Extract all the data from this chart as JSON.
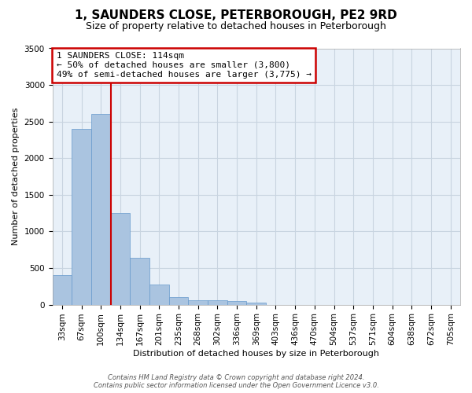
{
  "title": "1, SAUNDERS CLOSE, PETERBOROUGH, PE2 9RD",
  "subtitle": "Size of property relative to detached houses in Peterborough",
  "xlabel": "Distribution of detached houses by size in Peterborough",
  "ylabel": "Number of detached properties",
  "bar_labels": [
    "33sqm",
    "67sqm",
    "100sqm",
    "134sqm",
    "167sqm",
    "201sqm",
    "235sqm",
    "268sqm",
    "302sqm",
    "336sqm",
    "369sqm",
    "403sqm",
    "436sqm",
    "470sqm",
    "504sqm",
    "537sqm",
    "571sqm",
    "604sqm",
    "638sqm",
    "672sqm",
    "705sqm"
  ],
  "bar_heights": [
    400,
    2400,
    2600,
    1250,
    635,
    270,
    100,
    60,
    55,
    45,
    25,
    0,
    0,
    0,
    0,
    0,
    0,
    0,
    0,
    0,
    0
  ],
  "bar_color": "#aac4e0",
  "bar_edgecolor": "#6699cc",
  "vline_color": "#cc0000",
  "vline_pos": 2.5,
  "ylim": [
    0,
    3500
  ],
  "yticks": [
    0,
    500,
    1000,
    1500,
    2000,
    2500,
    3000,
    3500
  ],
  "bg_color": "#e8f0f8",
  "grid_color": "#c8d4e0",
  "annotation_title": "1 SAUNDERS CLOSE: 114sqm",
  "annotation_line1": "← 50% of detached houses are smaller (3,800)",
  "annotation_line2": "49% of semi-detached houses are larger (3,775) →",
  "annotation_box_facecolor": "#ffffff",
  "annotation_box_edgecolor": "#cc0000",
  "footer1": "Contains HM Land Registry data © Crown copyright and database right 2024.",
  "footer2": "Contains public sector information licensed under the Open Government Licence v3.0.",
  "title_fontsize": 11,
  "subtitle_fontsize": 9,
  "xlabel_fontsize": 8,
  "ylabel_fontsize": 8,
  "tick_fontsize": 7.5,
  "annotation_fontsize": 8,
  "footer_fontsize": 6
}
